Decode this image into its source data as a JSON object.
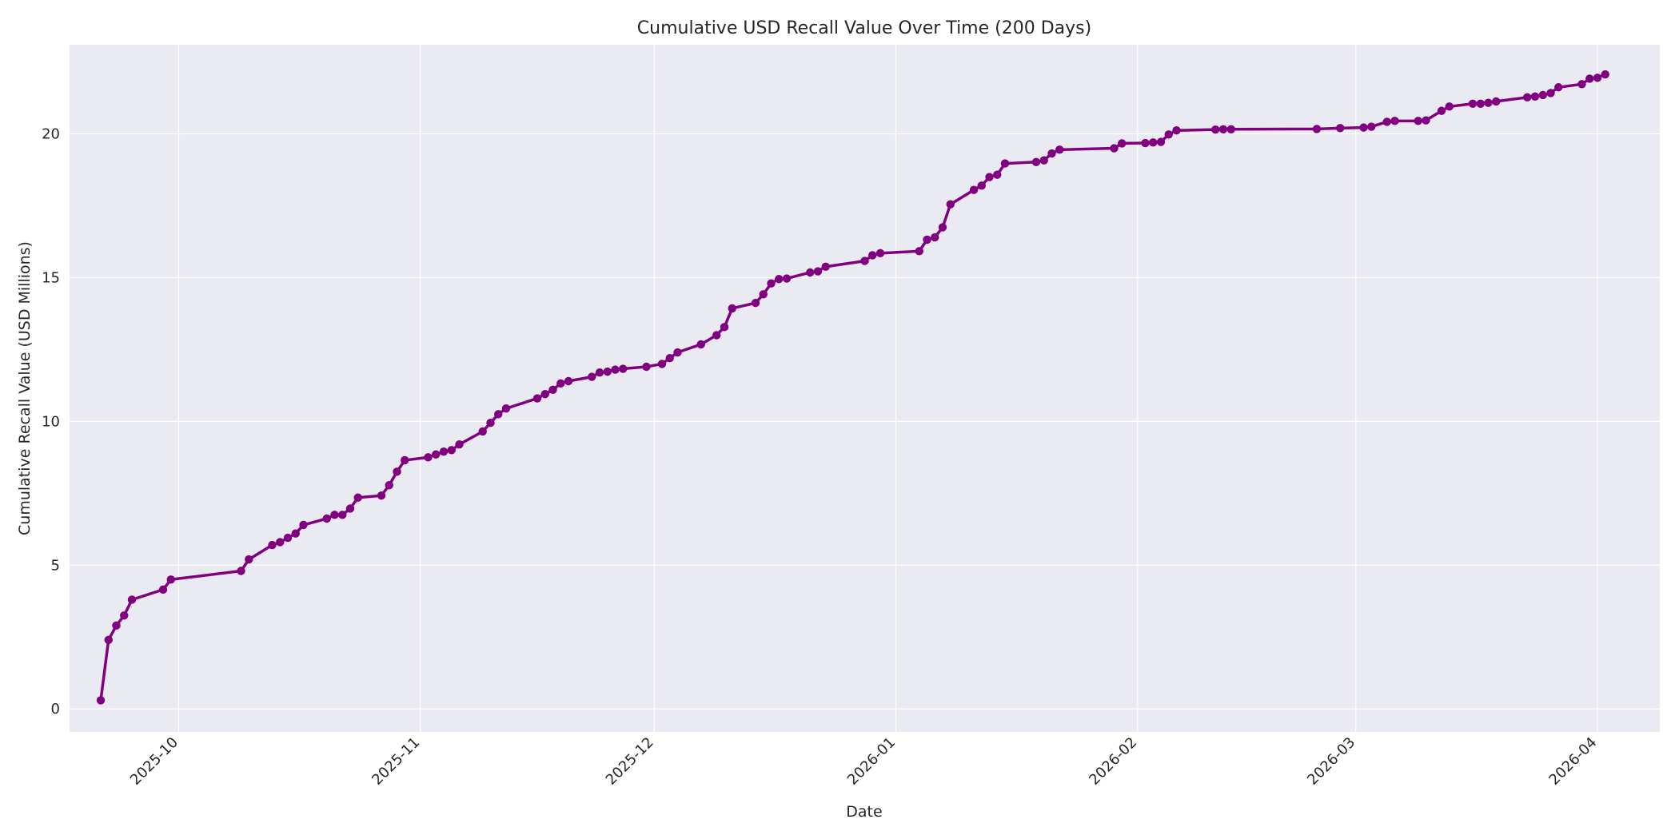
{
  "chart_data": {
    "type": "line",
    "title": "Cumulative USD Recall Value Over Time (200 Days)",
    "xlabel": "Date",
    "ylabel": "Cumulative Recall Value (USD Millions)",
    "xlim": [
      "2025-09-17",
      "2026-04-09"
    ],
    "ylim": [
      -0.8,
      23.1
    ],
    "x_ticks": [
      "2025-10",
      "2025-11",
      "2025-12",
      "2026-01",
      "2026-02",
      "2026-03",
      "2026-04"
    ],
    "y_ticks": [
      "0",
      "5",
      "10",
      "15",
      "20"
    ],
    "y_tick_values": [
      0,
      5,
      10,
      15,
      20
    ],
    "grid": true,
    "legend": "none",
    "colors": {
      "line": "#800080",
      "plot_background": "#eaeaf2",
      "grid": "#ffffff"
    },
    "series": [
      {
        "x": [
          "2025-09-21",
          "2025-09-22",
          "2025-09-23",
          "2025-09-24",
          "2025-09-25",
          "2025-09-29",
          "2025-09-30",
          "2025-10-09",
          "2025-10-10",
          "2025-10-13",
          "2025-10-14",
          "2025-10-15",
          "2025-10-16",
          "2025-10-17",
          "2025-10-20",
          "2025-10-21",
          "2025-10-22",
          "2025-10-23",
          "2025-10-24",
          "2025-10-27",
          "2025-10-28",
          "2025-10-29",
          "2025-10-30",
          "2025-11-02",
          "2025-11-03",
          "2025-11-04",
          "2025-11-05",
          "2025-11-06",
          "2025-11-09",
          "2025-11-10",
          "2025-11-11",
          "2025-11-12",
          "2025-11-16",
          "2025-11-17",
          "2025-11-18",
          "2025-11-19",
          "2025-11-20",
          "2025-11-23",
          "2025-11-24",
          "2025-11-25",
          "2025-11-26",
          "2025-11-27",
          "2025-11-30",
          "2025-12-02",
          "2025-12-03",
          "2025-12-04",
          "2025-12-07",
          "2025-12-09",
          "2025-12-10",
          "2025-12-11",
          "2025-12-14",
          "2025-12-15",
          "2025-12-16",
          "2025-12-17",
          "2025-12-18",
          "2025-12-21",
          "2025-12-22",
          "2025-12-23",
          "2025-12-28",
          "2025-12-29",
          "2025-12-30",
          "2026-01-04",
          "2026-01-05",
          "2026-01-06",
          "2026-01-07",
          "2026-01-08",
          "2026-01-11",
          "2026-01-12",
          "2026-01-13",
          "2026-01-14",
          "2026-01-15",
          "2026-01-19",
          "2026-01-20",
          "2026-01-21",
          "2026-01-22",
          "2026-01-29",
          "2026-01-30",
          "2026-02-02",
          "2026-02-03",
          "2026-02-04",
          "2026-02-05",
          "2026-02-06",
          "2026-02-11",
          "2026-02-12",
          "2026-02-13",
          "2026-02-24",
          "2026-02-27",
          "2026-03-02",
          "2026-03-03",
          "2026-03-05",
          "2026-03-06",
          "2026-03-09",
          "2026-03-10",
          "2026-03-12",
          "2026-03-13",
          "2026-03-16",
          "2026-03-17",
          "2026-03-18",
          "2026-03-19",
          "2026-03-23",
          "2026-03-24",
          "2026-03-25",
          "2026-03-26",
          "2026-03-27",
          "2026-03-30",
          "2026-03-31",
          "2026-04-01",
          "2026-04-02"
        ],
        "values": [
          0.3,
          2.4,
          2.9,
          3.25,
          3.8,
          4.15,
          4.5,
          4.8,
          5.2,
          5.7,
          5.8,
          5.95,
          6.1,
          6.4,
          6.62,
          6.75,
          6.75,
          6.97,
          7.35,
          7.42,
          7.78,
          8.25,
          8.65,
          8.75,
          8.85,
          8.95,
          9.0,
          9.2,
          9.65,
          9.95,
          10.25,
          10.45,
          10.8,
          10.95,
          11.1,
          11.32,
          11.4,
          11.55,
          11.7,
          11.73,
          11.8,
          11.83,
          11.9,
          12.0,
          12.2,
          12.4,
          12.68,
          13.0,
          13.28,
          13.93,
          14.12,
          14.42,
          14.8,
          14.95,
          14.97,
          15.18,
          15.22,
          15.38,
          15.58,
          15.78,
          15.85,
          15.92,
          16.32,
          16.4,
          16.75,
          17.55,
          18.05,
          18.2,
          18.5,
          18.58,
          18.97,
          19.02,
          19.08,
          19.32,
          19.45,
          19.5,
          19.67,
          19.68,
          19.7,
          19.72,
          19.98,
          20.12,
          20.15,
          20.16,
          20.16,
          20.17,
          20.2,
          20.22,
          20.25,
          20.42,
          20.45,
          20.45,
          20.47,
          20.8,
          20.95,
          21.05,
          21.05,
          21.08,
          21.13,
          21.27,
          21.3,
          21.35,
          21.42,
          21.62,
          21.73,
          21.92,
          21.95,
          22.07
        ]
      }
    ]
  }
}
